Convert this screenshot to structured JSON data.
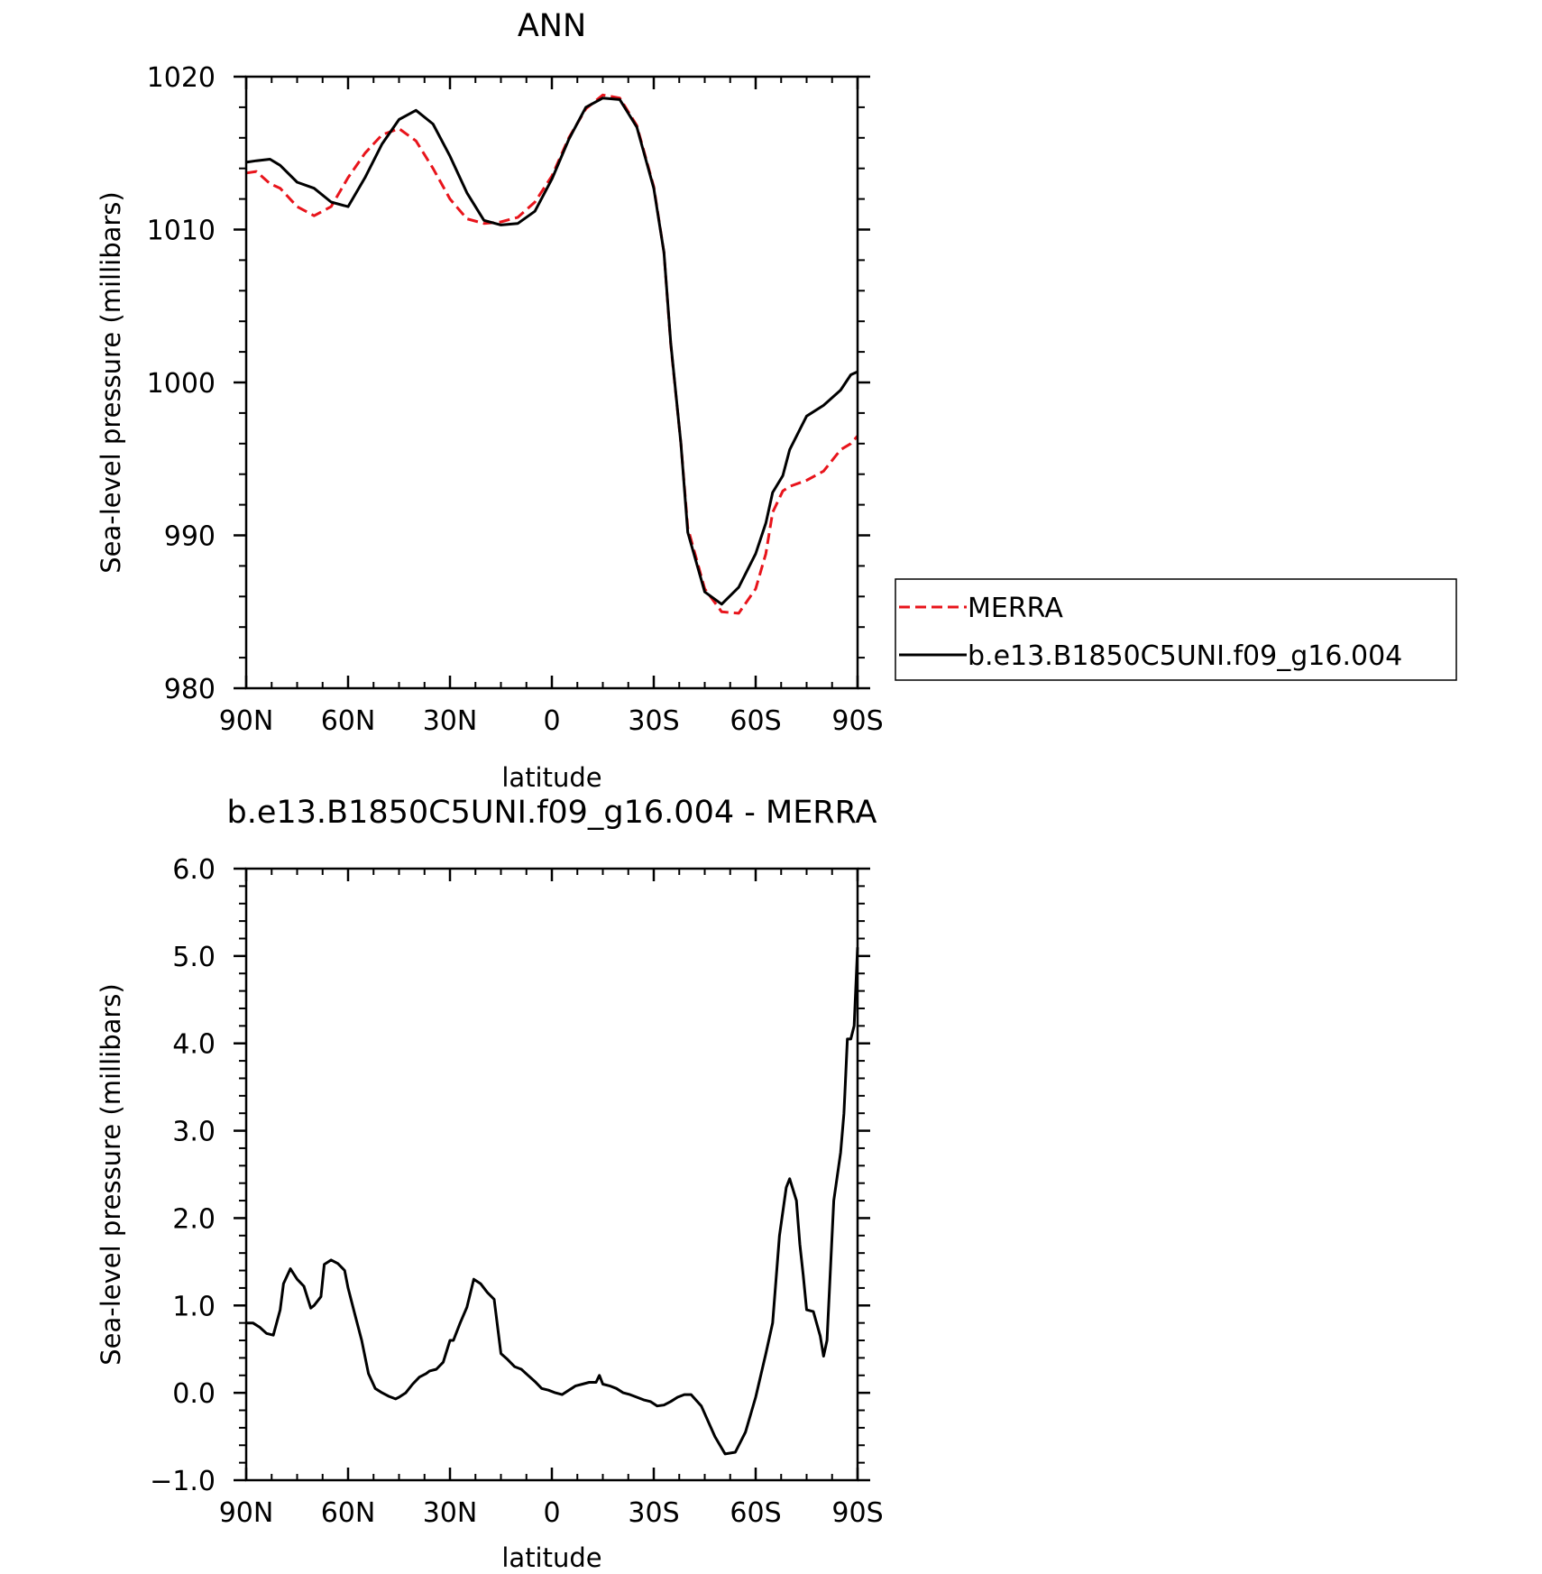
{
  "chart_data": [
    {
      "type": "line",
      "title": "ANN",
      "xlabel": "latitude",
      "ylabel": "Sea-level pressure (millibars)",
      "xlim": [
        90,
        -90
      ],
      "ylim": [
        980,
        1020
      ],
      "x_ticks": [
        90,
        60,
        30,
        0,
        -30,
        -60,
        -90
      ],
      "x_tick_labels": [
        "90N",
        "60N",
        "30N",
        "0",
        "30S",
        "60S",
        "90S"
      ],
      "y_ticks": [
        980,
        990,
        1000,
        1010,
        1020
      ],
      "y_tick_labels": [
        "980",
        "990",
        "1000",
        "1010",
        "1020"
      ],
      "legend": {
        "placement": "outside-right"
      },
      "series": [
        {
          "name": "MERRA",
          "color": "#e8141b",
          "dash": "dashed",
          "x": [
            90,
            87,
            83,
            80,
            75,
            70,
            65,
            60,
            55,
            50,
            45,
            40,
            35,
            30,
            25,
            20,
            15,
            10,
            5,
            0,
            -5,
            -10,
            -15,
            -20,
            -25,
            -30,
            -33,
            -35,
            -38,
            -40,
            -45,
            -50,
            -55,
            -60,
            -63,
            -65,
            -68,
            -70,
            -75,
            -80,
            -85,
            -88,
            -90
          ],
          "y": [
            1013.7,
            1013.8,
            1013.0,
            1012.7,
            1011.5,
            1010.9,
            1011.5,
            1013.4,
            1015.0,
            1016.2,
            1016.6,
            1015.8,
            1014.0,
            1012.0,
            1010.7,
            1010.4,
            1010.5,
            1010.8,
            1011.8,
            1013.5,
            1016.0,
            1017.9,
            1018.8,
            1018.6,
            1016.8,
            1012.8,
            1008.5,
            1002.5,
            996.0,
            990.5,
            986.5,
            985.0,
            984.9,
            986.5,
            988.8,
            991.5,
            992.9,
            993.2,
            993.6,
            994.2,
            995.6,
            996.0,
            996.5
          ]
        },
        {
          "name": "b.e13.B1850C5UNI.f09_g16.004",
          "color": "#000000",
          "dash": "solid",
          "x": [
            90,
            87,
            83,
            80,
            75,
            70,
            65,
            60,
            55,
            50,
            45,
            40,
            35,
            30,
            25,
            20,
            15,
            10,
            5,
            0,
            -5,
            -10,
            -15,
            -20,
            -25,
            -30,
            -33,
            -35,
            -38,
            -40,
            -45,
            -50,
            -55,
            -60,
            -63,
            -65,
            -68,
            -70,
            -75,
            -80,
            -85,
            -88,
            -90
          ],
          "y": [
            1014.4,
            1014.5,
            1014.6,
            1014.2,
            1013.1,
            1012.7,
            1011.8,
            1011.5,
            1013.4,
            1015.6,
            1017.2,
            1017.8,
            1016.9,
            1014.8,
            1012.4,
            1010.6,
            1010.3,
            1010.4,
            1011.2,
            1013.3,
            1015.9,
            1018.0,
            1018.6,
            1018.5,
            1016.7,
            1012.7,
            1008.5,
            1002.6,
            996.0,
            990.2,
            986.3,
            985.5,
            986.6,
            988.8,
            990.8,
            992.8,
            993.9,
            995.6,
            997.8,
            998.5,
            999.5,
            1000.5,
            1000.7
          ]
        }
      ]
    },
    {
      "type": "line",
      "title": "b.e13.B1850C5UNI.f09_g16.004 - MERRA",
      "xlabel": "latitude",
      "ylabel": "Sea-level pressure (millibars)",
      "xlim": [
        90,
        -90
      ],
      "ylim": [
        -1.0,
        6.0
      ],
      "x_ticks": [
        90,
        60,
        30,
        0,
        -30,
        -60,
        -90
      ],
      "x_tick_labels": [
        "90N",
        "60N",
        "30N",
        "0",
        "30S",
        "60S",
        "90S"
      ],
      "y_ticks": [
        -1.0,
        0.0,
        1.0,
        2.0,
        3.0,
        4.0,
        5.0,
        6.0
      ],
      "y_tick_labels": [
        "−1.0",
        "0.0",
        "1.0",
        "2.0",
        "3.0",
        "4.0",
        "5.0",
        "6.0"
      ],
      "series": [
        {
          "color": "#000000",
          "dash": "solid",
          "x": [
            90,
            88,
            86,
            84,
            82,
            80,
            79,
            77,
            75,
            73,
            71,
            70,
            68,
            67,
            65,
            63,
            61,
            60,
            58,
            56,
            54,
            52,
            50,
            48,
            46,
            45,
            43,
            41,
            39,
            37,
            36,
            34,
            32,
            30,
            29,
            27,
            25,
            23,
            21,
            19,
            17,
            15,
            13,
            11,
            9,
            7,
            5,
            3,
            1,
            -1,
            -3,
            -5,
            -7,
            -9,
            -11,
            -13,
            -14,
            -15,
            -17,
            -19,
            -21,
            -23,
            -25,
            -27,
            -29,
            -31,
            -33,
            -35,
            -37,
            -39,
            -41,
            -44,
            -48,
            -51,
            -54,
            -57,
            -60,
            -63,
            -65,
            -67,
            -69,
            -70,
            -72,
            -73,
            -74,
            -75,
            -77,
            -79,
            -80,
            -81,
            -83,
            -85,
            -86,
            -87,
            -88,
            -89,
            -90
          ],
          "y": [
            0.8,
            0.8,
            0.75,
            0.68,
            0.66,
            0.95,
            1.25,
            1.42,
            1.3,
            1.22,
            0.97,
            1.0,
            1.1,
            1.47,
            1.52,
            1.48,
            1.4,
            1.2,
            0.9,
            0.6,
            0.22,
            0.05,
            0.0,
            -0.04,
            -0.07,
            -0.05,
            0.0,
            0.1,
            0.18,
            0.22,
            0.25,
            0.27,
            0.35,
            0.6,
            0.6,
            0.8,
            0.98,
            1.3,
            1.25,
            1.15,
            1.07,
            0.45,
            0.38,
            0.3,
            0.27,
            0.2,
            0.13,
            0.05,
            0.03,
            0.0,
            -0.02,
            0.03,
            0.08,
            0.1,
            0.12,
            0.12,
            0.2,
            0.1,
            0.08,
            0.05,
            0.0,
            -0.02,
            -0.05,
            -0.08,
            -0.1,
            -0.15,
            -0.14,
            -0.1,
            -0.05,
            -0.02,
            -0.02,
            -0.15,
            -0.5,
            -0.7,
            -0.68,
            -0.45,
            -0.05,
            0.45,
            0.8,
            1.8,
            2.35,
            2.45,
            2.2,
            1.7,
            1.35,
            0.95,
            0.93,
            0.65,
            0.42,
            0.6,
            2.2,
            2.75,
            3.2,
            4.05,
            4.05,
            4.2,
            5.1
          ]
        }
      ]
    }
  ],
  "legend_entries": [
    "MERRA",
    "b.e13.B1850C5UNI.f09_g16.004"
  ]
}
